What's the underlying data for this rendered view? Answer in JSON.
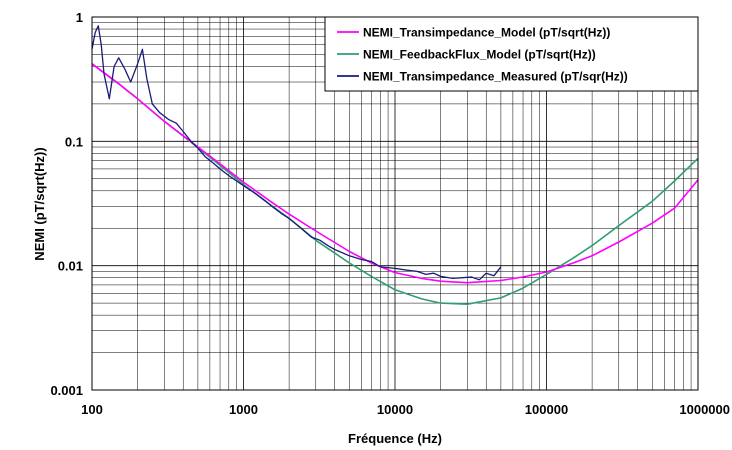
{
  "chart_data": {
    "type": "line",
    "title": "",
    "xlabel": "Fréquence (Hz)",
    "ylabel": "NEMI (pT/sqrt(Hz))",
    "xscale": "log",
    "yscale": "log",
    "xlim": [
      100,
      1000000
    ],
    "ylim": [
      0.001,
      1
    ],
    "x_tick_labels": [
      "100",
      "1000",
      "10000",
      "100000",
      "1000000"
    ],
    "y_tick_labels": [
      "0.001",
      "0.01",
      "0.1",
      "1"
    ],
    "grid": true,
    "legend_position": "top-right",
    "series": [
      {
        "name": "NEMI_Transimpedance_Model (pT/sqrt(Hz))",
        "color": "#ff00ff",
        "x": [
          100,
          150,
          200,
          300,
          500,
          700,
          1000,
          1500,
          2000,
          3000,
          5000,
          7000,
          10000,
          15000,
          20000,
          30000,
          50000,
          70000,
          100000,
          150000,
          200000,
          300000,
          500000,
          700000,
          1000000
        ],
        "y": [
          0.42,
          0.29,
          0.22,
          0.145,
          0.09,
          0.066,
          0.047,
          0.033,
          0.026,
          0.019,
          0.013,
          0.0105,
          0.0088,
          0.0079,
          0.0075,
          0.0073,
          0.0076,
          0.0081,
          0.0089,
          0.0105,
          0.012,
          0.0155,
          0.022,
          0.029,
          0.049
        ]
      },
      {
        "name": "NEMI_FeedbackFlux_Model (pT/sqrt(Hz))",
        "color": "#2e9e6e",
        "x": [
          100,
          150,
          200,
          300,
          500,
          700,
          1000,
          1500,
          2000,
          3000,
          5000,
          7000,
          10000,
          15000,
          20000,
          30000,
          50000,
          70000,
          100000,
          150000,
          200000,
          300000,
          500000,
          700000,
          1000000
        ],
        "y": [
          0.42,
          0.29,
          0.22,
          0.145,
          0.089,
          0.064,
          0.045,
          0.031,
          0.024,
          0.016,
          0.0105,
          0.0082,
          0.0064,
          0.0054,
          0.005,
          0.0049,
          0.0055,
          0.0066,
          0.0085,
          0.0115,
          0.0145,
          0.021,
          0.033,
          0.048,
          0.073
        ]
      },
      {
        "name": "NEMI_Transimpedance_Measured (pT/sqr(Hz))",
        "color": "#1a1a7a",
        "x": [
          100,
          105,
          110,
          115,
          120,
          130,
          140,
          150,
          165,
          180,
          200,
          215,
          230,
          250,
          280,
          320,
          360,
          400,
          450,
          500,
          560,
          630,
          700,
          800,
          900,
          1000,
          1200,
          1400,
          1600,
          1800,
          2000,
          2400,
          2800,
          3200,
          3600,
          4000,
          5000,
          6000,
          7000,
          8000,
          10000,
          12000,
          14000,
          16000,
          18000,
          20000,
          24000,
          28000,
          32000,
          36000,
          40000,
          45000,
          50000
        ],
        "y": [
          0.55,
          0.75,
          0.85,
          0.6,
          0.35,
          0.22,
          0.4,
          0.47,
          0.38,
          0.3,
          0.42,
          0.55,
          0.32,
          0.2,
          0.17,
          0.15,
          0.14,
          0.12,
          0.1,
          0.088,
          0.075,
          0.067,
          0.06,
          0.053,
          0.048,
          0.044,
          0.038,
          0.033,
          0.029,
          0.026,
          0.024,
          0.02,
          0.017,
          0.016,
          0.0145,
          0.0135,
          0.012,
          0.0112,
          0.0108,
          0.0098,
          0.0095,
          0.0092,
          0.009,
          0.0085,
          0.0087,
          0.0082,
          0.0079,
          0.008,
          0.0081,
          0.0077,
          0.0087,
          0.0083,
          0.0098
        ]
      }
    ]
  }
}
